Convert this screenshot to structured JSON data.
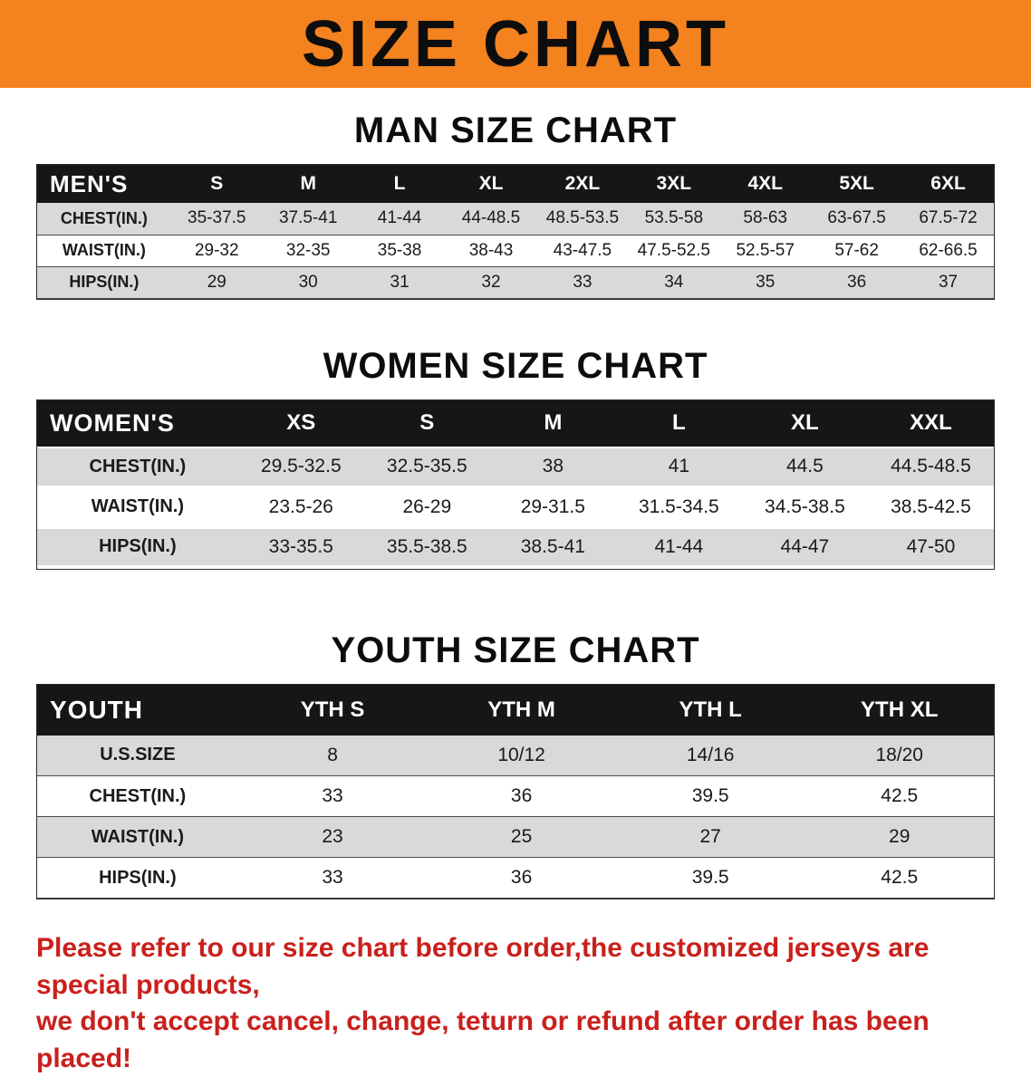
{
  "banner": {
    "title": "SIZE CHART"
  },
  "colors": {
    "banner_bg": "#F4821F",
    "table_header_bg": "#161616",
    "row_stripe": "#D9D9D9",
    "footer_text": "#C9201C"
  },
  "men": {
    "heading": "MAN SIZE CHART",
    "table": {
      "header": [
        "MEN'S",
        "S",
        "M",
        "L",
        "XL",
        "2XL",
        "3XL",
        "4XL",
        "5XL",
        "6XL"
      ],
      "rows": [
        [
          "CHEST(IN.)",
          "35-37.5",
          "37.5-41",
          "41-44",
          "44-48.5",
          "48.5-53.5",
          "53.5-58",
          "58-63",
          "63-67.5",
          "67.5-72"
        ],
        [
          "WAIST(IN.)",
          "29-32",
          "32-35",
          "35-38",
          "38-43",
          "43-47.5",
          "47.5-52.5",
          "52.5-57",
          "57-62",
          "62-66.5"
        ],
        [
          "HIPS(IN.)",
          "29",
          "30",
          "31",
          "32",
          "33",
          "34",
          "35",
          "36",
          "37"
        ]
      ]
    }
  },
  "women": {
    "heading": "WOMEN SIZE CHART",
    "table": {
      "header": [
        "WOMEN'S",
        "XS",
        "S",
        "M",
        "L",
        "XL",
        "XXL"
      ],
      "rows": [
        [
          "CHEST(IN.)",
          "29.5-32.5",
          "32.5-35.5",
          "38",
          "41",
          "44.5",
          "44.5-48.5"
        ],
        [
          "WAIST(IN.)",
          "23.5-26",
          "26-29",
          "29-31.5",
          "31.5-34.5",
          "34.5-38.5",
          "38.5-42.5"
        ],
        [
          "HIPS(IN.)",
          "33-35.5",
          "35.5-38.5",
          "38.5-41",
          "41-44",
          "44-47",
          "47-50"
        ]
      ]
    }
  },
  "youth": {
    "heading": "YOUTH SIZE CHART",
    "table": {
      "header": [
        "YOUTH",
        "YTH S",
        "YTH M",
        "YTH L",
        "YTH XL"
      ],
      "rows": [
        [
          "U.S.SIZE",
          "8",
          "10/12",
          "14/16",
          "18/20"
        ],
        [
          "CHEST(IN.)",
          "33",
          "36",
          "39.5",
          "42.5"
        ],
        [
          "WAIST(IN.)",
          "23",
          "25",
          "27",
          "29"
        ],
        [
          "HIPS(IN.)",
          "33",
          "36",
          "39.5",
          "42.5"
        ]
      ]
    }
  },
  "footer": {
    "line1": "Please refer to our size chart before order,the customized jerseys are special products,",
    "line2": "we don't accept cancel, change, teturn or refund after order has been placed!"
  }
}
